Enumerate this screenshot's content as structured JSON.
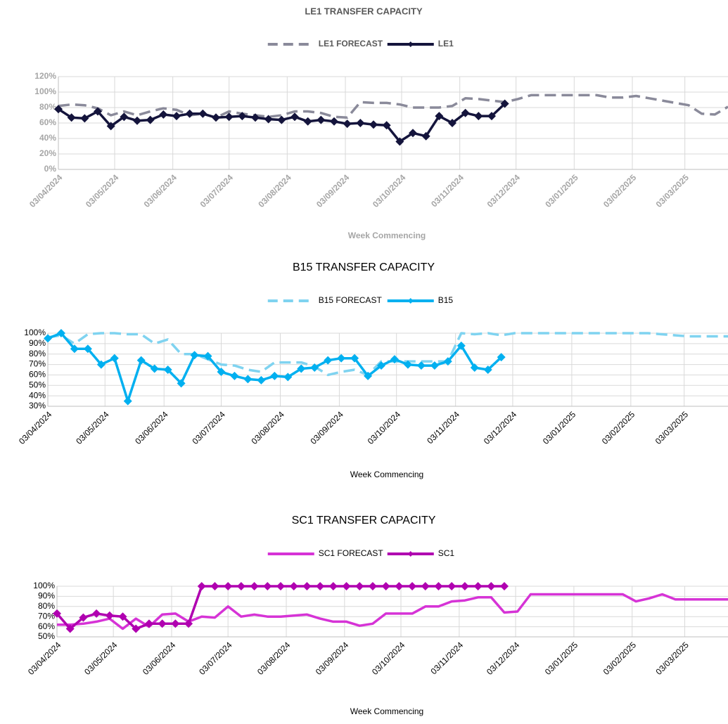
{
  "chart_data": [
    {
      "type": "line",
      "title": "LE1 TRANSFER CAPACITY",
      "x_label": "Week Commencing",
      "legend": "top",
      "x": [
        "03/04/2024",
        "10/04/2024",
        "17/04/2024",
        "24/04/2024",
        "01/05/2024",
        "08/05/2024",
        "15/05/2024",
        "22/05/2024",
        "29/05/2024",
        "05/06/2024",
        "12/06/2024",
        "19/06/2024",
        "26/06/2024",
        "03/07/2024",
        "10/07/2024",
        "17/07/2024",
        "24/07/2024",
        "31/07/2024",
        "07/08/2024",
        "14/08/2024",
        "21/08/2024",
        "28/08/2024",
        "04/09/2024",
        "11/09/2024",
        "18/09/2024",
        "25/09/2024",
        "02/10/2024",
        "09/10/2024",
        "16/10/2024",
        "23/10/2024",
        "30/10/2024",
        "06/11/2024",
        "13/11/2024",
        "20/11/2024",
        "27/11/2024",
        "04/12/2024",
        "11/12/2024",
        "18/12/2024",
        "25/12/2024",
        "01/01/2025",
        "08/01/2025",
        "15/01/2025",
        "22/01/2025",
        "29/01/2025",
        "05/02/2025",
        "12/02/2025",
        "19/02/2025",
        "26/02/2025",
        "05/03/2025",
        "12/03/2025",
        "19/03/2025",
        "26/03/2025"
      ],
      "xlim": [
        "03/04/2024",
        "26/03/2025"
      ],
      "xticks": [
        "03/04/2024",
        "03/05/2024",
        "03/06/2024",
        "03/07/2024",
        "03/08/2024",
        "03/09/2024",
        "03/10/2024",
        "03/11/2024",
        "03/12/2024",
        "03/01/2025",
        "03/02/2025",
        "03/03/2025"
      ],
      "ylim": [
        0,
        120
      ],
      "yticks": [
        {
          "value": 0,
          "label": "0%"
        },
        {
          "value": 20,
          "label": "20%"
        },
        {
          "value": 40,
          "label": "40%"
        },
        {
          "value": 60,
          "label": "60%"
        },
        {
          "value": 80,
          "label": "80%"
        },
        {
          "value": 100,
          "label": "100%"
        },
        {
          "value": 120,
          "label": "120%"
        }
      ],
      "grid": true,
      "series": [
        {
          "name": "LE1 FORECAST",
          "color": "#8a8a9a",
          "dashed": true,
          "values": [
            82,
            84,
            83,
            79,
            70,
            75,
            70,
            75,
            79,
            77,
            70,
            72,
            67,
            75,
            72,
            70,
            68,
            70,
            75,
            75,
            73,
            68,
            67,
            87,
            86,
            86,
            84,
            80,
            80,
            80,
            82,
            92,
            91,
            89,
            87,
            91,
            96,
            96,
            96,
            96,
            96,
            96,
            93,
            93,
            95,
            92,
            89,
            86,
            83,
            72,
            71,
            81
          ]
        },
        {
          "name": "LE1",
          "color": "#14143c",
          "marker": "diamond",
          "values": [
            78,
            67,
            66,
            75,
            56,
            68,
            63,
            64,
            71,
            69,
            72,
            72,
            67,
            68,
            69,
            67,
            65,
            64,
            68,
            62,
            64,
            62,
            59,
            60,
            58,
            57,
            36,
            47,
            43,
            69,
            60,
            73,
            69,
            69,
            85,
            null,
            null,
            null,
            null,
            null,
            null,
            null,
            null,
            null,
            null,
            null,
            null,
            null,
            null,
            null,
            null,
            null
          ]
        }
      ]
    },
    {
      "type": "line",
      "title": "B15 TRANSFER CAPACITY",
      "x_label": "Week Commencing",
      "legend": "top",
      "x": [
        "03/04/2024",
        "10/04/2024",
        "17/04/2024",
        "24/04/2024",
        "01/05/2024",
        "08/05/2024",
        "15/05/2024",
        "22/05/2024",
        "29/05/2024",
        "05/06/2024",
        "12/06/2024",
        "19/06/2024",
        "26/06/2024",
        "03/07/2024",
        "10/07/2024",
        "17/07/2024",
        "24/07/2024",
        "31/07/2024",
        "07/08/2024",
        "14/08/2024",
        "21/08/2024",
        "28/08/2024",
        "04/09/2024",
        "11/09/2024",
        "18/09/2024",
        "25/09/2024",
        "02/10/2024",
        "09/10/2024",
        "16/10/2024",
        "23/10/2024",
        "30/10/2024",
        "06/11/2024",
        "13/11/2024",
        "20/11/2024",
        "27/11/2024",
        "04/12/2024",
        "11/12/2024",
        "18/12/2024",
        "25/12/2024",
        "01/01/2025",
        "08/01/2025",
        "15/01/2025",
        "22/01/2025",
        "29/01/2025",
        "05/02/2025",
        "12/02/2025",
        "19/02/2025",
        "26/02/2025",
        "05/03/2025",
        "12/03/2025",
        "19/03/2025",
        "26/03/2025"
      ],
      "xlim": [
        "03/04/2024",
        "26/03/2025"
      ],
      "xticks": [
        "03/04/2024",
        "03/05/2024",
        "03/06/2024",
        "03/07/2024",
        "03/08/2024",
        "03/09/2024",
        "03/10/2024",
        "03/11/2024",
        "03/12/2024",
        "03/01/2025",
        "03/02/2025",
        "03/03/2025"
      ],
      "ylim": [
        30,
        100
      ],
      "yticks": [
        {
          "value": 30,
          "label": "30%"
        },
        {
          "value": 40,
          "label": "40%"
        },
        {
          "value": 50,
          "label": "50%"
        },
        {
          "value": 60,
          "label": "60%"
        },
        {
          "value": 70,
          "label": "70%"
        },
        {
          "value": 80,
          "label": "80%"
        },
        {
          "value": 90,
          "label": "90%"
        },
        {
          "value": 100,
          "label": "100%"
        }
      ],
      "grid": true,
      "series": [
        {
          "name": "B15 FORECAST",
          "color": "#7fd3f0",
          "dashed": true,
          "values": [
            96,
            98,
            90,
            99,
            100,
            100,
            99,
            99,
            90,
            94,
            80,
            80,
            75,
            70,
            69,
            65,
            63,
            72,
            72,
            72,
            68,
            60,
            63,
            65,
            60,
            73,
            73,
            73,
            73,
            73,
            73,
            100,
            99,
            100,
            98,
            100,
            100,
            100,
            100,
            100,
            100,
            100,
            100,
            100,
            100,
            100,
            99,
            98,
            97,
            97,
            97,
            97
          ]
        },
        {
          "name": "B15",
          "color": "#00b0f0",
          "marker": "diamond",
          "values": [
            95,
            100,
            85,
            85,
            70,
            76,
            35,
            74,
            66,
            65,
            52,
            79,
            78,
            63,
            59,
            56,
            55,
            59,
            58,
            66,
            67,
            74,
            76,
            76,
            59,
            69,
            75,
            70,
            69,
            69,
            73,
            88,
            67,
            65,
            77,
            null,
            null,
            null,
            null,
            null,
            null,
            null,
            null,
            null,
            null,
            null,
            null,
            null,
            null,
            null,
            null,
            null
          ]
        }
      ]
    },
    {
      "type": "line",
      "title": "SC1 TRANSFER CAPACITY",
      "x_label": "Week Commencing",
      "legend": "top",
      "x": [
        "03/04/2024",
        "10/04/2024",
        "17/04/2024",
        "24/04/2024",
        "01/05/2024",
        "08/05/2024",
        "15/05/2024",
        "22/05/2024",
        "29/05/2024",
        "05/06/2024",
        "12/06/2024",
        "19/06/2024",
        "26/06/2024",
        "03/07/2024",
        "10/07/2024",
        "17/07/2024",
        "24/07/2024",
        "31/07/2024",
        "07/08/2024",
        "14/08/2024",
        "21/08/2024",
        "28/08/2024",
        "04/09/2024",
        "11/09/2024",
        "18/09/2024",
        "25/09/2024",
        "02/10/2024",
        "09/10/2024",
        "16/10/2024",
        "23/10/2024",
        "30/10/2024",
        "06/11/2024",
        "13/11/2024",
        "20/11/2024",
        "27/11/2024",
        "04/12/2024",
        "11/12/2024",
        "18/12/2024",
        "25/12/2024",
        "01/01/2025",
        "08/01/2025",
        "15/01/2025",
        "22/01/2025",
        "29/01/2025",
        "05/02/2025",
        "12/02/2025",
        "19/02/2025",
        "26/02/2025",
        "05/03/2025",
        "12/03/2025",
        "19/03/2025",
        "26/03/2025"
      ],
      "xlim": [
        "03/04/2024",
        "26/03/2025"
      ],
      "xticks": [
        "03/04/2024",
        "03/05/2024",
        "03/06/2024",
        "03/07/2024",
        "03/08/2024",
        "03/09/2024",
        "03/10/2024",
        "03/11/2024",
        "03/12/2024",
        "03/01/2025",
        "03/02/2025",
        "03/03/2025"
      ],
      "ylim": [
        50,
        100
      ],
      "yticks": [
        {
          "value": 50,
          "label": "50%"
        },
        {
          "value": 60,
          "label": "60%"
        },
        {
          "value": 70,
          "label": "70%"
        },
        {
          "value": 80,
          "label": "80%"
        },
        {
          "value": 90,
          "label": "90%"
        },
        {
          "value": 100,
          "label": "100%"
        }
      ],
      "grid": true,
      "series": [
        {
          "name": "SC1 FORECAST",
          "color": "#d633d6",
          "values": [
            62,
            62,
            63,
            65,
            68,
            58,
            68,
            60,
            72,
            73,
            65,
            70,
            69,
            80,
            70,
            72,
            70,
            70,
            71,
            72,
            68,
            65,
            65,
            61,
            63,
            73,
            73,
            73,
            80,
            80,
            85,
            86,
            89,
            89,
            74,
            75,
            92,
            92,
            92,
            92,
            92,
            92,
            92,
            92,
            85,
            88,
            92,
            87,
            87,
            87,
            87,
            87
          ]
        },
        {
          "name": "SC1",
          "color": "#b000b0",
          "marker": "diamond",
          "values": [
            73,
            58,
            69,
            73,
            71,
            70,
            58,
            63,
            63,
            63,
            63,
            100,
            100,
            100,
            100,
            100,
            100,
            100,
            100,
            100,
            100,
            100,
            100,
            100,
            100,
            100,
            100,
            100,
            100,
            100,
            100,
            100,
            100,
            100,
            100,
            null,
            null,
            null,
            null,
            null,
            null,
            null,
            null,
            null,
            null,
            null,
            null,
            null,
            null,
            null,
            null,
            null
          ]
        }
      ]
    }
  ]
}
